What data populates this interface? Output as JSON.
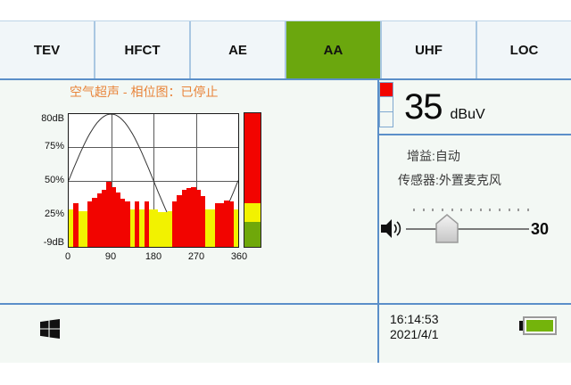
{
  "tabs": {
    "items": [
      {
        "label": "TEV",
        "active": false
      },
      {
        "label": "HFCT",
        "active": false
      },
      {
        "label": "AE",
        "active": false
      },
      {
        "label": "AA",
        "active": true
      },
      {
        "label": "UHF",
        "active": false
      },
      {
        "label": "LOC",
        "active": false
      }
    ],
    "active_color": "#6ba70e"
  },
  "chart_data": {
    "type": "bar",
    "title": "空气超声 - 相位图：已停止",
    "status": "已停止",
    "y_axis_labels": [
      "80dB",
      "75%",
      "50%",
      "25%",
      "-9dB"
    ],
    "x_tick_labels": [
      "0",
      "90",
      "180",
      "270",
      "360"
    ],
    "x_range_deg": [
      0,
      360
    ],
    "grid": true,
    "bin_width_deg": 10,
    "palette": {
      "red": "#f20400",
      "yellow": "#f2f200",
      "green": "#6fa80a"
    },
    "bars": [
      {
        "color": "yellow",
        "pct": 28
      },
      {
        "color": "red",
        "pct": 33
      },
      {
        "color": "yellow",
        "pct": 27
      },
      {
        "color": "yellow",
        "pct": 27
      },
      {
        "color": "red",
        "pct": 34
      },
      {
        "color": "red",
        "pct": 37
      },
      {
        "color": "red",
        "pct": 40
      },
      {
        "color": "red",
        "pct": 43
      },
      {
        "color": "red",
        "pct": 49
      },
      {
        "color": "red",
        "pct": 45
      },
      {
        "color": "red",
        "pct": 41
      },
      {
        "color": "red",
        "pct": 36
      },
      {
        "color": "red",
        "pct": 34
      },
      {
        "color": "yellow",
        "pct": 28
      },
      {
        "color": "red",
        "pct": 34
      },
      {
        "color": "yellow",
        "pct": 28
      },
      {
        "color": "red",
        "pct": 34
      },
      {
        "color": "yellow",
        "pct": 28
      },
      {
        "color": "yellow",
        "pct": 28
      },
      {
        "color": "yellow",
        "pct": 26
      },
      {
        "color": "yellow",
        "pct": 26
      },
      {
        "color": "yellow",
        "pct": 27
      },
      {
        "color": "red",
        "pct": 34
      },
      {
        "color": "red",
        "pct": 39
      },
      {
        "color": "red",
        "pct": 43
      },
      {
        "color": "red",
        "pct": 44
      },
      {
        "color": "red",
        "pct": 45
      },
      {
        "color": "red",
        "pct": 43
      },
      {
        "color": "red",
        "pct": 38
      },
      {
        "color": "yellow",
        "pct": 28
      },
      {
        "color": "yellow",
        "pct": 28
      },
      {
        "color": "red",
        "pct": 33
      },
      {
        "color": "red",
        "pct": 33
      },
      {
        "color": "red",
        "pct": 35
      },
      {
        "color": "red",
        "pct": 34
      },
      {
        "color": "yellow",
        "pct": 28
      }
    ],
    "sine_overlay": {
      "offset_pct": 50,
      "amplitude_pct": 50,
      "peak_deg": 90
    },
    "level_bar": {
      "segments": [
        {
          "color": "red",
          "pct": 67
        },
        {
          "color": "yellow",
          "pct": 14.5
        },
        {
          "color": "green",
          "pct": 18.5
        }
      ]
    }
  },
  "right_panel": {
    "indicator_cells": {
      "count": 3,
      "filled": 1,
      "filled_color": "#f20400"
    },
    "reading": {
      "value": "35",
      "unit": "dBuV"
    },
    "gain_label": "增益:自动",
    "sensor_label": "传感器:外置麦克风",
    "slider": {
      "value": "30",
      "tick_count": 13,
      "icon": "speaker-volume"
    }
  },
  "status_bar": {
    "time": "16:14:53",
    "date": "2021/4/1",
    "battery": {
      "level": "full",
      "color": "#74b40b"
    },
    "start_icon": "windows-logo"
  },
  "colors": {
    "divider_blue": "#5b8fc9",
    "tab_separator": "#a9c7e2",
    "panel_bg": "#f3f8f4",
    "title_orange": "#e8843a"
  }
}
